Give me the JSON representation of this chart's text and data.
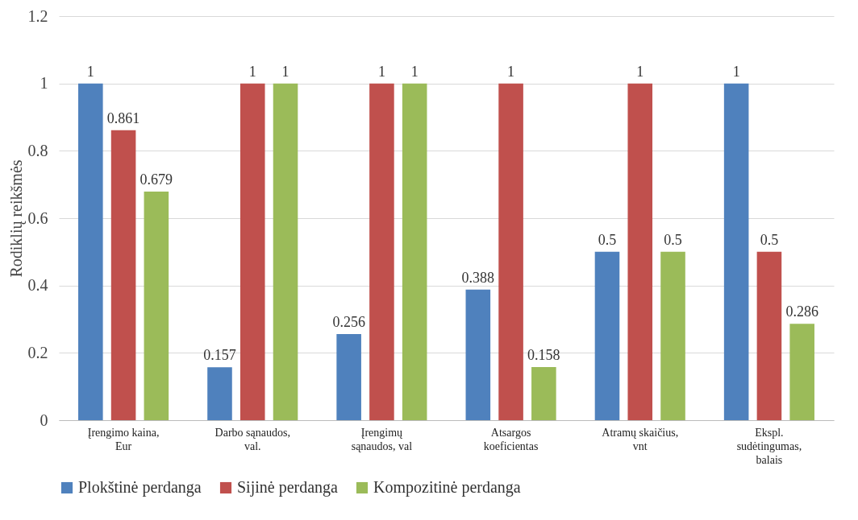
{
  "chart_data": {
    "type": "bar",
    "ylabel": "Rodiklių reikšmės",
    "categories": [
      "Įrengimo kaina,\nEur",
      "Darbo sąnaudos,\nval.",
      "Įrengimų\nsąnaudos, val",
      "Atsargos\nkoeficientas",
      "Atramų skaičius,\nvnt",
      "Ekspl.\nsudėtingumas,\nbalais"
    ],
    "series": [
      {
        "name": "Plokštinė perdanga",
        "color": "#4f81bd",
        "values": [
          1,
          0.157,
          0.256,
          0.388,
          0.5,
          1
        ]
      },
      {
        "name": "Sijinė perdanga",
        "color": "#c0504d",
        "values": [
          0.861,
          1,
          1,
          1,
          1,
          0.5
        ]
      },
      {
        "name": "Kompozitinė perdanga",
        "color": "#9bbb59",
        "values": [
          0.679,
          1,
          1,
          0.158,
          0.5,
          0.286
        ]
      }
    ],
    "ylim": [
      0,
      1.2
    ],
    "yticks": [
      0,
      0.2,
      0.4,
      0.6,
      0.8,
      1,
      1.2
    ],
    "grid": "y",
    "legend": "bottom",
    "data_labels": true
  }
}
